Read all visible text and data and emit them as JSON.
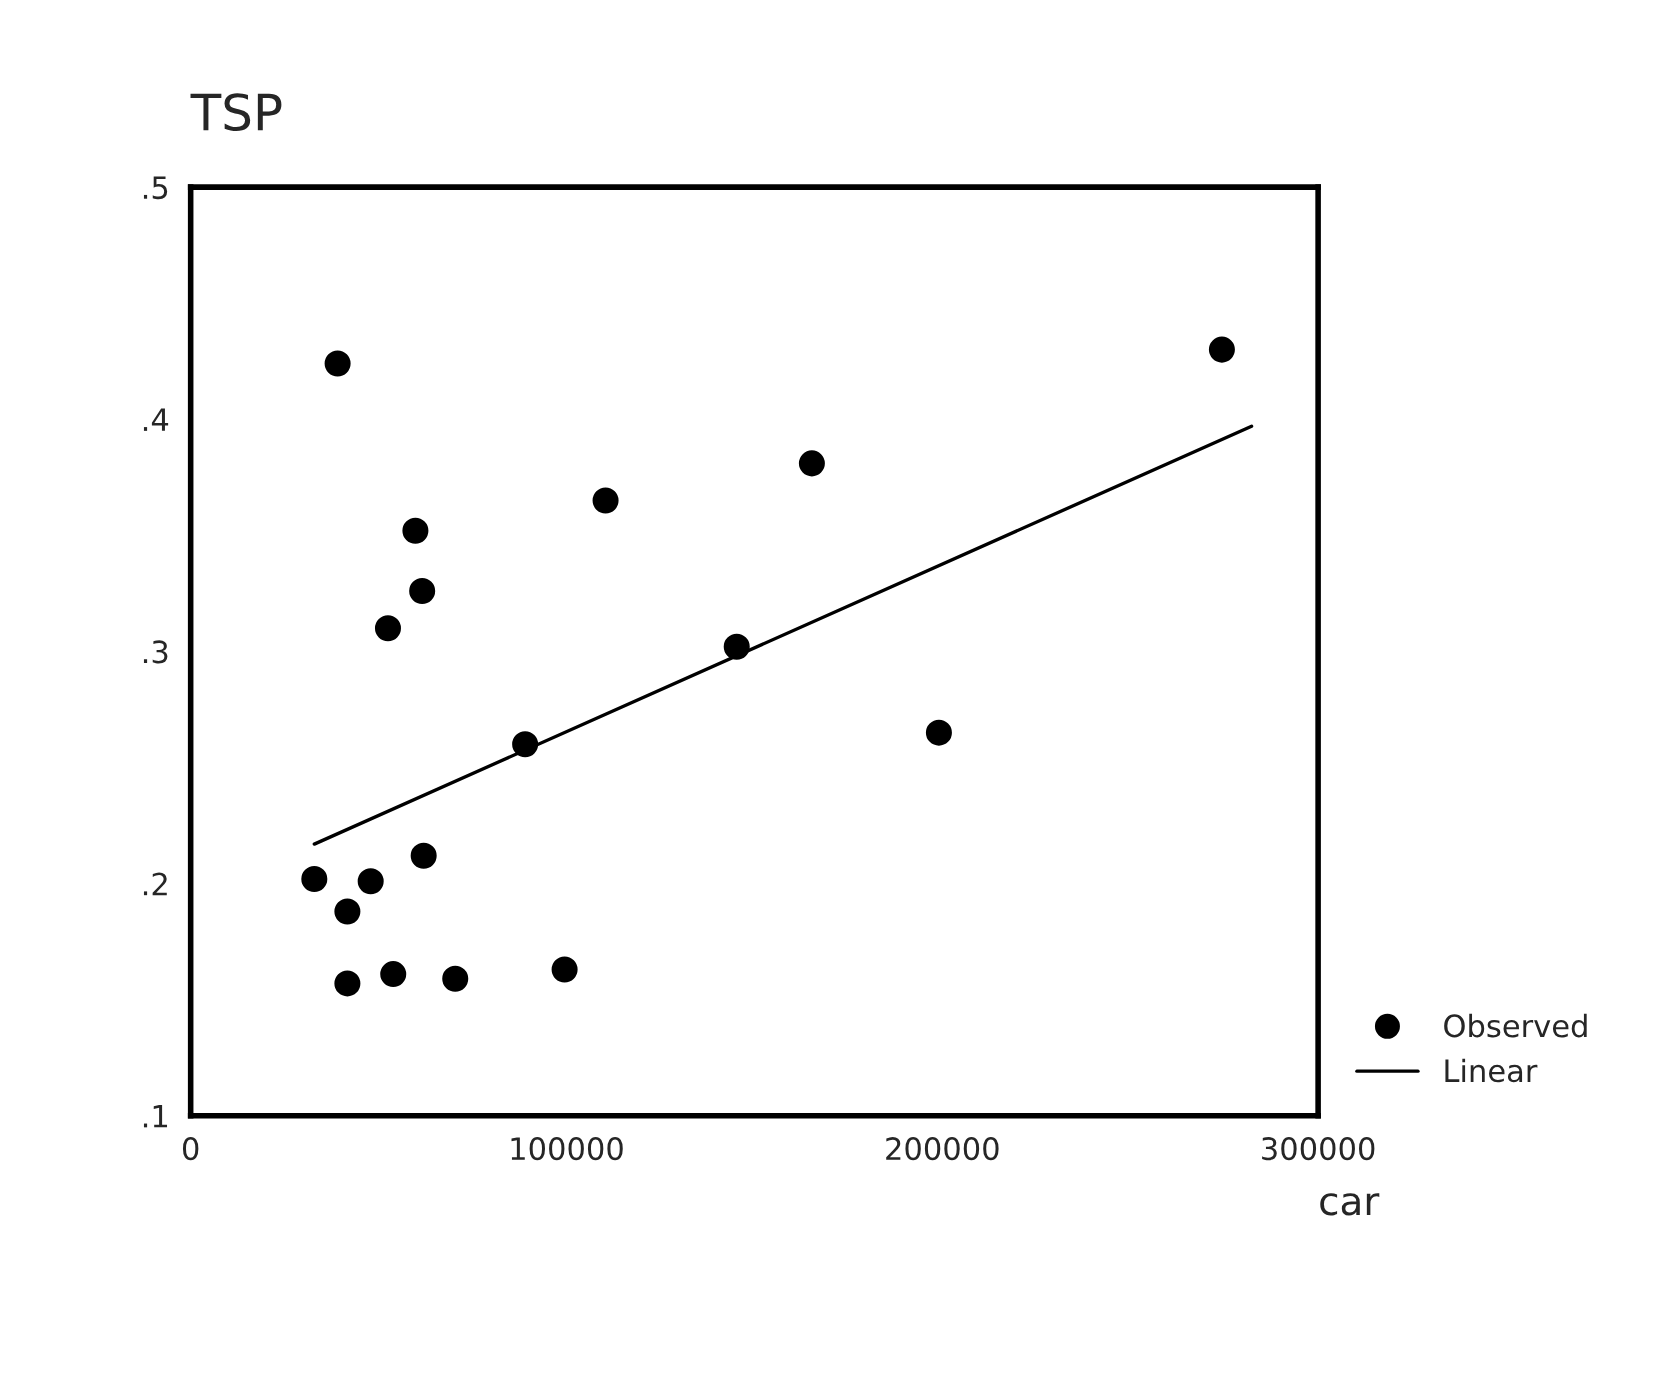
{
  "chart_data": {
    "type": "scatter",
    "ylabel": "TSP",
    "xlabel": "car",
    "xlim": [
      0,
      300000
    ],
    "xticks": [
      0,
      100000,
      200000,
      300000
    ],
    "ylim": [
      0.1,
      0.5
    ],
    "yticks": [
      {
        "value": 0.1,
        "label": ".1"
      },
      {
        "value": 0.2,
        "label": ".2"
      },
      {
        "value": 0.3,
        "label": ".3"
      },
      {
        "value": 0.4,
        "label": ".4"
      },
      {
        "value": 0.5,
        "label": ".5"
      }
    ],
    "grid": false,
    "legend": "bottom right",
    "series": [
      {
        "name": "Observed",
        "marker": "circle",
        "color": "#000000",
        "x": [
          39100,
          59800,
          61600,
          52500,
          110400,
          165300,
          89000,
          145300,
          32900,
          41700,
          47900,
          62000,
          41700,
          53900,
          70400,
          99500,
          274400,
          199100
        ],
        "values": [
          0.424,
          0.352,
          0.326,
          0.31,
          0.365,
          0.381,
          0.26,
          0.302,
          0.202,
          0.188,
          0.201,
          0.212,
          0.157,
          0.161,
          0.159,
          0.163,
          0.43,
          0.265
        ]
      },
      {
        "name": "Linear",
        "type": "line",
        "color": "#000000",
        "line_style": "solid",
        "x": [
          32900,
          282300
        ],
        "values": [
          0.217,
          0.397
        ]
      }
    ]
  }
}
